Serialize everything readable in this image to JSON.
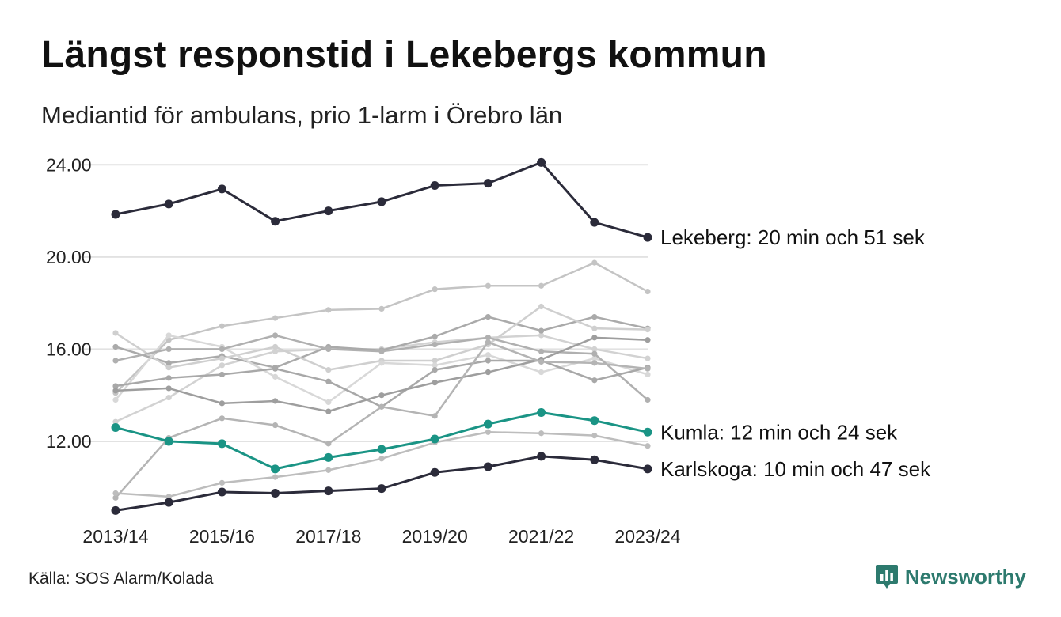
{
  "title": "Längst responstid i Lekebergs kommun",
  "subtitle": "Mediantid för ambulans, prio 1-larm i Örebro län",
  "source": "Källa: SOS Alarm/Kolada",
  "brand": {
    "name": "Newsworthy",
    "icon": "newsworthy-logo-icon",
    "color": "#2d7a6e"
  },
  "chart_data": {
    "type": "line",
    "x": [
      "2013/14",
      "2014/15",
      "2015/16",
      "2016/17",
      "2017/18",
      "2018/19",
      "2019/20",
      "2020/21",
      "2021/22",
      "2022/23",
      "2023/24"
    ],
    "x_tick_labels": [
      "2013/14",
      "2015/16",
      "2017/18",
      "2019/20",
      "2021/22",
      "2023/24"
    ],
    "ylim": [
      8.6,
      24.8
    ],
    "y_ticks": [
      12,
      16,
      20,
      24
    ],
    "y_tick_labels": [
      "12.00",
      "16.00",
      "20.00",
      "24.00"
    ],
    "grid": "horizontal",
    "legend": "none",
    "highlight_series": [
      {
        "label": "Lekeberg: 20 min och 51 sek",
        "color": "#2b2b3a",
        "values": [
          21.85,
          22.3,
          22.95,
          21.55,
          22.0,
          22.4,
          23.1,
          23.2,
          24.1,
          21.5,
          20.85
        ]
      },
      {
        "label": "Kumla: 12 min och 24 sek",
        "color": "#1a9485",
        "values": [
          12.6,
          12.0,
          11.9,
          10.8,
          11.3,
          11.65,
          12.1,
          12.75,
          13.25,
          12.9,
          12.4
        ]
      },
      {
        "label": "Karlskoga: 10 min och 47 sek",
        "color": "#2b2b3a",
        "values": [
          9.0,
          9.35,
          9.8,
          9.75,
          9.85,
          9.95,
          10.65,
          10.9,
          11.35,
          11.2,
          10.8
        ]
      }
    ],
    "background_series": [
      {
        "color": "#d2d2d2",
        "values": [
          12.85,
          13.9,
          15.3,
          15.9,
          16.0,
          16.0,
          16.3,
          16.5,
          16.6,
          16.0,
          15.6
        ]
      },
      {
        "color": "#c4c4c4",
        "values": [
          14.1,
          16.4,
          17.0,
          17.35,
          17.7,
          17.75,
          18.6,
          18.75,
          18.75,
          19.75,
          18.5
        ]
      },
      {
        "color": "#aaaaaa",
        "values": [
          16.1,
          15.4,
          15.7,
          15.2,
          16.1,
          15.95,
          16.55,
          17.4,
          16.8,
          17.4,
          16.9
        ]
      },
      {
        "color": "#cfcfcf",
        "values": [
          16.7,
          15.2,
          15.6,
          16.1,
          15.1,
          15.5,
          15.5,
          16.2,
          17.85,
          16.9,
          16.85
        ]
      },
      {
        "color": "#d8d8d8",
        "values": [
          13.8,
          16.6,
          16.1,
          14.8,
          13.7,
          15.4,
          15.3,
          15.75,
          15.0,
          15.6,
          14.9
        ]
      },
      {
        "color": "#b0b0b0",
        "values": [
          15.5,
          16.0,
          16.0,
          16.6,
          16.0,
          15.9,
          16.2,
          16.5,
          15.9,
          15.8,
          13.8
        ]
      },
      {
        "color": "#a8a8a8",
        "values": [
          14.4,
          14.75,
          14.9,
          15.15,
          14.6,
          13.5,
          15.1,
          15.5,
          15.5,
          14.65,
          15.2
        ]
      },
      {
        "color": "#9e9e9e",
        "values": [
          14.2,
          14.3,
          13.65,
          13.75,
          13.3,
          14.0,
          14.55,
          15.0,
          15.55,
          16.5,
          16.4
        ]
      },
      {
        "color": "#b4b4b4",
        "values": [
          9.55,
          12.15,
          13.0,
          12.7,
          11.9,
          13.5,
          13.1,
          16.3,
          15.45,
          15.4,
          15.15
        ]
      },
      {
        "color": "#bdbdbd",
        "values": [
          9.75,
          9.6,
          10.2,
          10.45,
          10.75,
          11.25,
          11.95,
          12.4,
          12.35,
          12.25,
          11.8
        ]
      }
    ]
  }
}
